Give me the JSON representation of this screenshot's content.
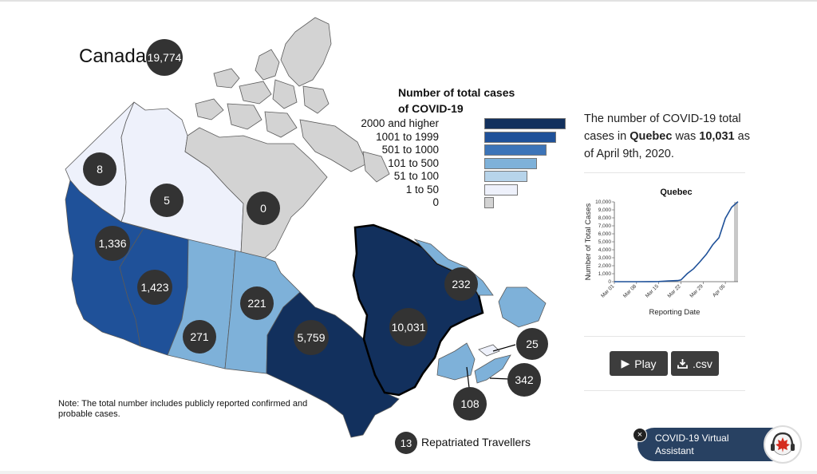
{
  "country": {
    "name": "Canada",
    "total": "19,774"
  },
  "legend": {
    "title_line1": "Number of total cases",
    "title_line2": "of COVID-19",
    "items": [
      {
        "label": "2000 and higher",
        "color": "#12305d"
      },
      {
        "label": "1001 to 1999",
        "color": "#1f5199"
      },
      {
        "label": "501 to 1000",
        "color": "#3c74b8"
      },
      {
        "label": "101 to 500",
        "color": "#7eb1d9"
      },
      {
        "label": "51 to 100",
        "color": "#b7d4ea"
      },
      {
        "label": "1 to 50",
        "color": "#eef1fb"
      },
      {
        "label": "0",
        "color": "#d3d3d3"
      }
    ]
  },
  "provinces": [
    {
      "id": "yukon",
      "cases": "8",
      "color": "#eef1fb"
    },
    {
      "id": "northwest-territories",
      "cases": "5",
      "color": "#eef1fb"
    },
    {
      "id": "nunavut",
      "cases": "0",
      "color": "#d3d3d3"
    },
    {
      "id": "british-columbia",
      "cases": "1,336",
      "color": "#1f5199"
    },
    {
      "id": "alberta",
      "cases": "1,423",
      "color": "#1f5199"
    },
    {
      "id": "saskatchewan",
      "cases": "271",
      "color": "#7eb1d9"
    },
    {
      "id": "manitoba",
      "cases": "221",
      "color": "#7eb1d9"
    },
    {
      "id": "ontario",
      "cases": "5,759",
      "color": "#12305d"
    },
    {
      "id": "quebec",
      "cases": "10,031",
      "color": "#12305d"
    },
    {
      "id": "newfoundland-and-labrador",
      "cases": "232",
      "color": "#7eb1d9"
    },
    {
      "id": "prince-edward-island",
      "cases": "25",
      "color": "#eef1fb"
    },
    {
      "id": "nova-scotia",
      "cases": "342",
      "color": "#7eb1d9"
    },
    {
      "id": "new-brunswick",
      "cases": "108",
      "color": "#7eb1d9"
    }
  ],
  "note": "Note: The total number includes publicly reported confirmed and probable cases.",
  "repatriated": {
    "count": "13",
    "label": "Repatriated Travellers"
  },
  "summary": {
    "prefix": "The number of COVID-19 total cases in ",
    "province": "Quebec",
    "middle": " was ",
    "count": "10,031",
    "suffix": " as of April 9th, 2020."
  },
  "chart_data": {
    "type": "line",
    "title": "Quebec",
    "xlabel": "Reporting Date",
    "ylabel": "Number of Total Cases",
    "ylim": [
      0,
      10000
    ],
    "yticks": [
      "0",
      "1,000",
      "2,000",
      "3,000",
      "4,000",
      "5,000",
      "6,000",
      "7,000",
      "8,000",
      "9,000",
      "10,000"
    ],
    "xticks": [
      "Mar 01",
      "Mar 08",
      "Mar 15",
      "Mar 22",
      "Mar 29",
      "Apr 05"
    ],
    "x": [
      "Mar 01",
      "Mar 08",
      "Mar 12",
      "Mar 15",
      "Mar 18",
      "Mar 21",
      "Mar 22",
      "Mar 24",
      "Mar 26",
      "Mar 28",
      "Mar 30",
      "Apr 01",
      "Apr 03",
      "Apr 05",
      "Apr 07",
      "Apr 09"
    ],
    "series": [
      {
        "values": [
          0,
          1,
          8,
          24,
          94,
          139,
          221,
          1013,
          1629,
          2498,
          3430,
          4611,
          5518,
          7944,
          9340,
          10031
        ]
      }
    ],
    "line_color": "#1f5199",
    "highlight_color": "#c8c8c8"
  },
  "buttons": {
    "play": "Play",
    "csv": ".csv"
  },
  "assistant": {
    "line1": "COVID-19 Virtual",
    "line2": "Assistant",
    "close": "×"
  }
}
